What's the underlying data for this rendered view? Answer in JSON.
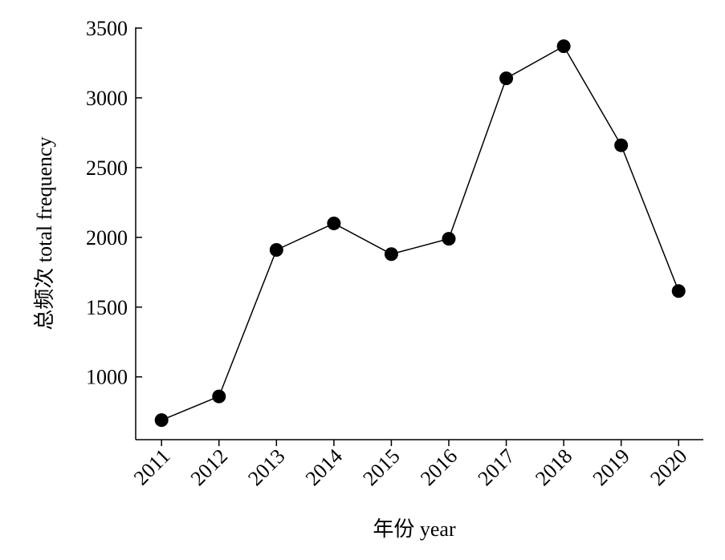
{
  "chart_data": {
    "type": "line",
    "x_label": "年份 year",
    "y_label": "总频次 total frequency",
    "x": [
      2011,
      2012,
      2013,
      2014,
      2015,
      2016,
      2017,
      2018,
      2019,
      2020
    ],
    "series": [
      {
        "color": "#000000",
        "values": [
          690,
          860,
          1910,
          2100,
          1880,
          1990,
          3140,
          3370,
          2660,
          1615
        ]
      }
    ],
    "xlim": [
      2010.55,
      2020.43
    ],
    "xticks": [
      2011,
      2012,
      2013,
      2014,
      2015,
      2016,
      2017,
      2018,
      2019,
      2020
    ],
    "ylim": [
      550,
      3500
    ],
    "yticks": [
      1000,
      1500,
      2000,
      2500,
      3000,
      3500
    ],
    "grid": false
  }
}
